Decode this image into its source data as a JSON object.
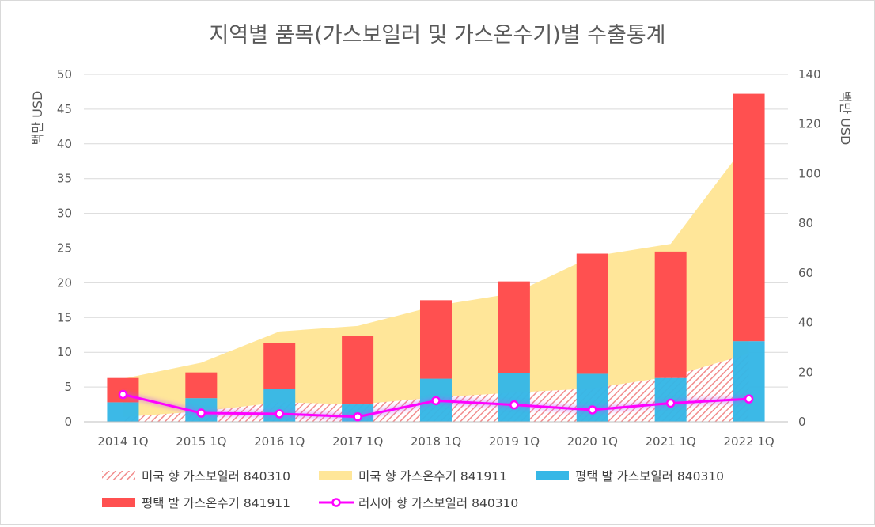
{
  "chart_data": {
    "type": "combo-bar-area-line",
    "title": "지역별 품목(가스보일러 및 가스온수기)별 수출통계",
    "categories": [
      "2014 1Q",
      "2015 1Q",
      "2016 1Q",
      "2017 1Q",
      "2018 1Q",
      "2019 1Q",
      "2020 1Q",
      "2021 1Q",
      "2022 1Q"
    ],
    "y_left": {
      "label": "백만 USD",
      "min": 0,
      "max": 50,
      "ticks": [
        0,
        5,
        10,
        15,
        20,
        25,
        30,
        35,
        40,
        45,
        50
      ]
    },
    "y_right": {
      "label": "백만 USD",
      "min": 0,
      "max": 140,
      "ticks": [
        0,
        20,
        40,
        60,
        80,
        100,
        120,
        140
      ]
    },
    "series": [
      {
        "name": "미국 향 가스보일러 840310",
        "type": "area",
        "style": "hatched",
        "axis": "left",
        "color": "#f4b4b4",
        "values": [
          0.7,
          1.5,
          2.8,
          2.5,
          3.5,
          4.2,
          4.8,
          6.5,
          9.8
        ]
      },
      {
        "name": "미국 향 가스온수기 841911",
        "type": "area",
        "axis": "left",
        "color": "#ffe699",
        "values": [
          6.2,
          8.5,
          13.0,
          13.8,
          16.7,
          18.5,
          23.8,
          25.6,
          40.5
        ]
      },
      {
        "name": "평택 발 가스보일러 840310",
        "type": "bar",
        "axis": "left",
        "color": "#36b7e6",
        "values": [
          2.8,
          3.4,
          4.7,
          2.5,
          6.2,
          7.0,
          6.9,
          6.3,
          11.6
        ]
      },
      {
        "name": "평택 발 가스온수기 841911",
        "type": "bar",
        "stacked": true,
        "axis": "left",
        "color": "#ff5050",
        "values": [
          3.5,
          3.7,
          6.6,
          9.8,
          11.3,
          13.2,
          17.3,
          18.2,
          35.6
        ]
      },
      {
        "name": "러시아 향 가스보일러 840310",
        "type": "line",
        "axis": "right",
        "color": "#ff00ff",
        "values": [
          11.0,
          3.5,
          3.2,
          2.0,
          8.5,
          6.8,
          4.8,
          7.5,
          9.2
        ]
      }
    ],
    "legend_position": "bottom"
  }
}
